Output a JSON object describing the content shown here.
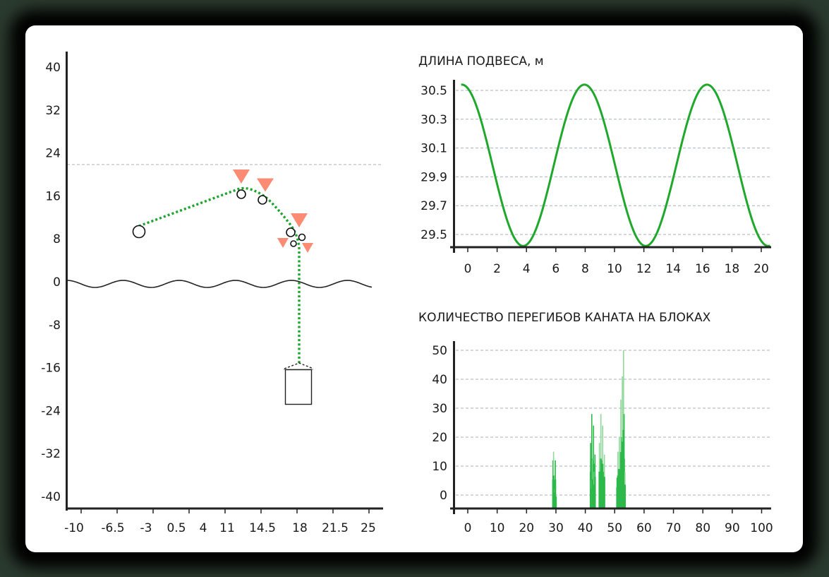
{
  "colors": {
    "rope": "#1aa52a",
    "curve": "#1fa82c",
    "bars": "#2db84a",
    "bars_light": "#8fd89a",
    "triangles": "#fb8b72",
    "axis": "#222222",
    "grid": "#a9b1bb"
  },
  "chart_data": [
    {
      "type": "diagram-plot",
      "title": "",
      "xlabel": "",
      "ylabel": "",
      "x_tick_labels": [
        "-10",
        "-6.5",
        "-3",
        "0.5",
        "4",
        "11",
        "14.5",
        "18",
        "21.5",
        "25"
      ],
      "y_tick_labels": [
        "40",
        "32",
        "24",
        "16",
        "8",
        "0",
        "-8",
        "-16",
        "-24",
        "-32",
        "-40"
      ],
      "ylim": [
        -42,
        42
      ],
      "reference_line_y": 21.7,
      "water_level_y": 0,
      "rope_points": [
        {
          "x": -4.5,
          "y": 9.4
        },
        {
          "x": 11.7,
          "y": 17.2
        },
        {
          "x": 15.0,
          "y": 15.3
        },
        {
          "x": 18.0,
          "y": 9.2
        },
        {
          "x": 18.4,
          "y": -15.5
        }
      ],
      "blocks": [
        {
          "x": -4.5,
          "y": 9.4,
          "r": "large"
        },
        {
          "x": 11.9,
          "y": 16.4,
          "r": "medium"
        },
        {
          "x": 15.1,
          "y": 15.2,
          "r": "medium"
        },
        {
          "x": 17.4,
          "y": 9.1,
          "r": "medium"
        },
        {
          "x": 19.1,
          "y": 8.2,
          "r": "small"
        },
        {
          "x": 17.8,
          "y": 7.1,
          "r": "small"
        }
      ],
      "markers_triangle": 5,
      "load": {
        "x_center": 18.1,
        "y_top": -16.5,
        "y_bottom": -23
      }
    },
    {
      "type": "line",
      "title": "ДЛИНА ПОДВЕСА, м",
      "xlabel": "",
      "ylabel": "",
      "x_ticks": [
        0,
        2,
        4,
        6,
        8,
        10,
        12,
        14,
        16,
        18,
        20
      ],
      "y_ticks": [
        30.5,
        30.3,
        30.1,
        29.9,
        29.7,
        29.5
      ],
      "xlim": [
        -0.5,
        20.6
      ],
      "ylim": [
        29.42,
        30.6
      ],
      "grid": true,
      "series": [
        {
          "name": "length",
          "x": [
            -0.4,
            1.5,
            3.4,
            5.5,
            7.7,
            9.8,
            12.0,
            14.1,
            16.2,
            18.3,
            20.4
          ],
          "values": [
            30.54,
            29.98,
            29.42,
            29.98,
            30.54,
            29.98,
            29.42,
            29.98,
            30.54,
            29.98,
            29.42
          ]
        }
      ]
    },
    {
      "type": "bar",
      "title": "КОЛИЧЕСТВО ПЕРЕГИБОВ КАНАТА НА БЛОКАХ",
      "xlabel": "",
      "ylabel": "",
      "x_ticks": [
        0,
        10,
        20,
        30,
        40,
        50,
        60,
        70,
        80,
        90,
        100
      ],
      "y_ticks": [
        50,
        40,
        30,
        20,
        10,
        0
      ],
      "xlim": [
        -5,
        103
      ],
      "ylim": [
        -4,
        55
      ],
      "grid": true,
      "bars": [
        {
          "x": 29.0,
          "value": 12
        },
        {
          "x": 29.2,
          "value": 15
        },
        {
          "x": 29.4,
          "value": 5
        },
        {
          "x": 29.6,
          "value": 2
        },
        {
          "x": 29.8,
          "value": 12
        },
        {
          "x": 30.0,
          "value": -1
        },
        {
          "x": 41.8,
          "value": 18
        },
        {
          "x": 42.0,
          "value": 5
        },
        {
          "x": 42.2,
          "value": 28
        },
        {
          "x": 42.5,
          "value": 12
        },
        {
          "x": 42.8,
          "value": 24
        },
        {
          "x": 43.0,
          "value": 8
        },
        {
          "x": 43.3,
          "value": 14
        },
        {
          "x": 44.8,
          "value": 18
        },
        {
          "x": 45.0,
          "value": 5
        },
        {
          "x": 45.3,
          "value": 28
        },
        {
          "x": 45.6,
          "value": 12
        },
        {
          "x": 45.9,
          "value": 24
        },
        {
          "x": 46.2,
          "value": 8
        },
        {
          "x": 46.5,
          "value": 14
        },
        {
          "x": 50.8,
          "value": 6
        },
        {
          "x": 51.1,
          "value": 15
        },
        {
          "x": 51.3,
          "value": 9
        },
        {
          "x": 51.6,
          "value": 20
        },
        {
          "x": 51.9,
          "value": 7
        },
        {
          "x": 52.1,
          "value": 33
        },
        {
          "x": 52.4,
          "value": 20
        },
        {
          "x": 52.6,
          "value": 41
        },
        {
          "x": 52.8,
          "value": 13
        },
        {
          "x": 53.0,
          "value": 50
        },
        {
          "x": 53.2,
          "value": 28
        },
        {
          "x": 53.5,
          "value": 8
        }
      ]
    }
  ]
}
